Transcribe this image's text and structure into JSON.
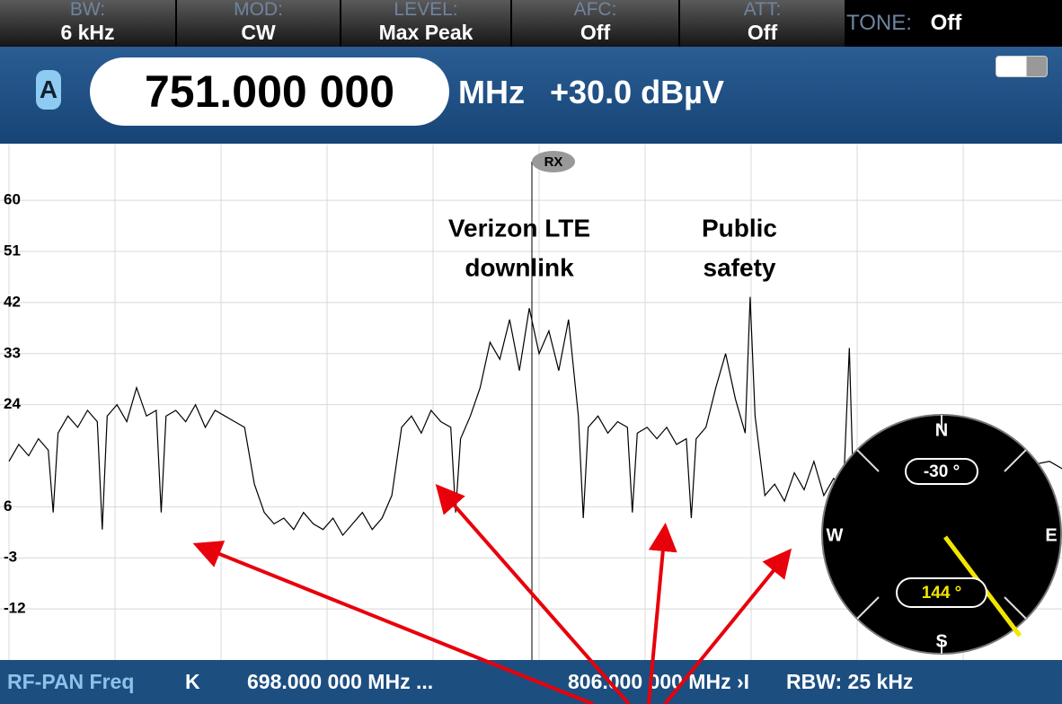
{
  "toolbar": [
    {
      "label": "BW:",
      "value": "6 kHz"
    },
    {
      "label": "MOD:",
      "value": "CW"
    },
    {
      "label": "LEVEL:",
      "value": "Max Peak"
    },
    {
      "label": "AFC:",
      "value": "Off"
    },
    {
      "label": "ATT:",
      "value": "Off"
    }
  ],
  "tone": {
    "label": "TONE:",
    "value": "Off"
  },
  "header": {
    "channel": "A",
    "frequency": "751.000 000",
    "unit": "MHz",
    "level": "+30.0 dBµV"
  },
  "chart_data": {
    "type": "line",
    "marker": "RX",
    "annotations": [
      [
        "Verizon LTE",
        "downlink"
      ],
      [
        "Public",
        "safety"
      ]
    ],
    "xlim": [
      698,
      806
    ],
    "ylim": [
      -21,
      70
    ],
    "yticks": [
      60,
      51,
      42,
      33,
      24,
      6,
      -3,
      -12
    ],
    "grid": true,
    "x": [
      698,
      699,
      700,
      701,
      702,
      702.5,
      703,
      704,
      705,
      706,
      707,
      707.5,
      708,
      709,
      710,
      711,
      712,
      713,
      713.5,
      714,
      715,
      716,
      717,
      718,
      719,
      720,
      721,
      722,
      723,
      724,
      725,
      726,
      727,
      728,
      729,
      730,
      731,
      732,
      733,
      734,
      735,
      736,
      737,
      738,
      739,
      740,
      741,
      742,
      743,
      743.5,
      744,
      745,
      746,
      747,
      748,
      749,
      750,
      751,
      752,
      753,
      754,
      755,
      756,
      756.5,
      757,
      758,
      759,
      760,
      761,
      761.5,
      762,
      763,
      764,
      765,
      766,
      767,
      767.5,
      768,
      769,
      770,
      771,
      772,
      773,
      773.5,
      774,
      775,
      776,
      777,
      778,
      779,
      780,
      781,
      782,
      783,
      783.6,
      784,
      785,
      786,
      787,
      788,
      789,
      792,
      795,
      798,
      801,
      804,
      806
    ],
    "series": [
      {
        "color": "#000000",
        "values": [
          14,
          17,
          15,
          18,
          16,
          5,
          19,
          22,
          20,
          23,
          21,
          2,
          22,
          24,
          21,
          27,
          22,
          23,
          5,
          22,
          23,
          21,
          24,
          20,
          23,
          22,
          21,
          20,
          10,
          5,
          3,
          4,
          2,
          5,
          3,
          2,
          4,
          1,
          3,
          5,
          2,
          4,
          8,
          20,
          22,
          19,
          23,
          21,
          20,
          5,
          18,
          22,
          27,
          35,
          32,
          39,
          30,
          41,
          33,
          37,
          30,
          39,
          22,
          4,
          20,
          22,
          19,
          21,
          20,
          5,
          19,
          20,
          18,
          20,
          17,
          18,
          4,
          18,
          20,
          27,
          33,
          25,
          19,
          43,
          22,
          8,
          10,
          7,
          12,
          9,
          14,
          8,
          11,
          9,
          34,
          10,
          12,
          15,
          14,
          16,
          14,
          18,
          14,
          16,
          13,
          14,
          12
        ]
      }
    ]
  },
  "compass": {
    "north": "N",
    "south": "S",
    "west": "W",
    "east": "E",
    "tilt": "-30 °",
    "heading": "144 °"
  },
  "footer": {
    "mode": "RF-PAN Freq",
    "start_icon": "K",
    "start": "698.000 000 MHz ...",
    "stop": "806.000 000 MHz",
    "stop_icon": "›I",
    "rbw": "RBW: 25 kHz"
  }
}
